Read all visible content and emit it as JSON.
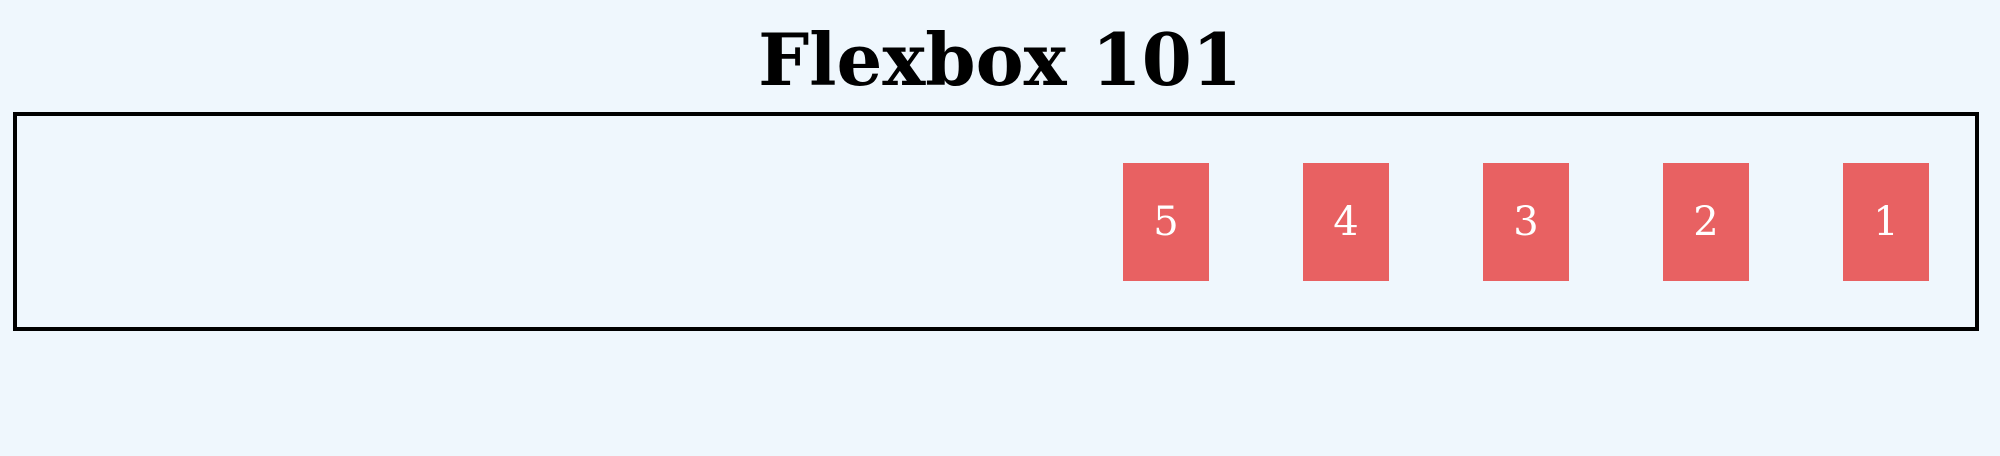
{
  "page": {
    "title": "Flexbox 101"
  },
  "container": {
    "items": [
      {
        "label": "1"
      },
      {
        "label": "2"
      },
      {
        "label": "3"
      },
      {
        "label": "4"
      },
      {
        "label": "5"
      }
    ],
    "item_color": "#e86162",
    "border_color": "#000000"
  },
  "colors": {
    "background": "#eff7fd",
    "item_text": "#ffffff"
  }
}
